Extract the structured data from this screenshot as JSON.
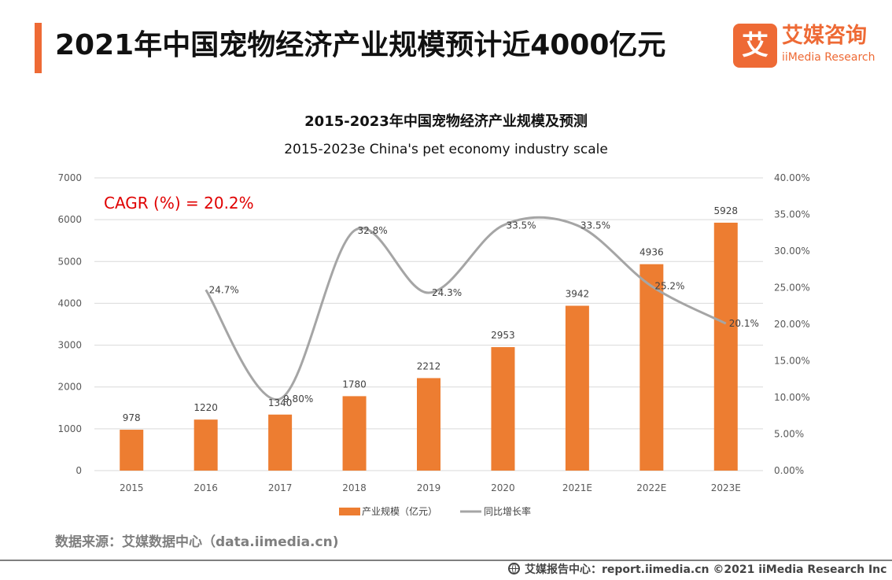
{
  "header": {
    "title": "2021年中国宠物经济产业规模预计近4000亿元"
  },
  "logo": {
    "mark": "艾",
    "cn": "艾媒咨询",
    "en": "iiMedia Research"
  },
  "chart_data": {
    "type": "bar",
    "title": "2015-2023年中国宠物经济产业规模及预测",
    "subtitle": "2015-2023e China's pet economy industry scale",
    "annotation": "CAGR (%) = 20.2%",
    "categories": [
      "2015",
      "2016",
      "2017",
      "2018",
      "2019",
      "2020",
      "2021E",
      "2022E",
      "2023E"
    ],
    "y_left": {
      "ylim": [
        0,
        7000
      ],
      "ticks": [
        "0",
        "1000",
        "2000",
        "3000",
        "4000",
        "5000",
        "6000",
        "7000"
      ]
    },
    "y_right": {
      "ylim": [
        0,
        40
      ],
      "ticks": [
        "0.00%",
        "5.00%",
        "10.00%",
        "15.00%",
        "20.00%",
        "25.00%",
        "30.00%",
        "35.00%",
        "40.00%"
      ]
    },
    "grid": true,
    "legend_position": "bottom-center",
    "series": [
      {
        "name": "产业规模（亿元）",
        "type": "bar",
        "axis": "left",
        "color": "#ed7d31",
        "values": [
          978,
          1220,
          1340,
          1780,
          2212,
          2953,
          3942,
          4936,
          5928
        ],
        "labels": [
          "978",
          "1220",
          "1340",
          "1780",
          "2212",
          "2953",
          "3942",
          "4936",
          "5928"
        ]
      },
      {
        "name": "同比增长率",
        "type": "line",
        "axis": "right",
        "smooth": true,
        "color": "#a5a5a5",
        "values": [
          null,
          24.7,
          9.8,
          32.8,
          24.3,
          33.5,
          33.5,
          25.2,
          20.1
        ],
        "labels": [
          "",
          "24.7%",
          "9.80%",
          "32.8%",
          "24.3%",
          "33.5%",
          "33.5%",
          "25.2%",
          "20.1%"
        ]
      }
    ]
  },
  "source": "数据来源：艾媒数据中心（data.iimedia.cn)",
  "footer": {
    "text": "艾媒报告中心：report.iimedia.cn  ©2021  iiMedia Research  Inc"
  }
}
